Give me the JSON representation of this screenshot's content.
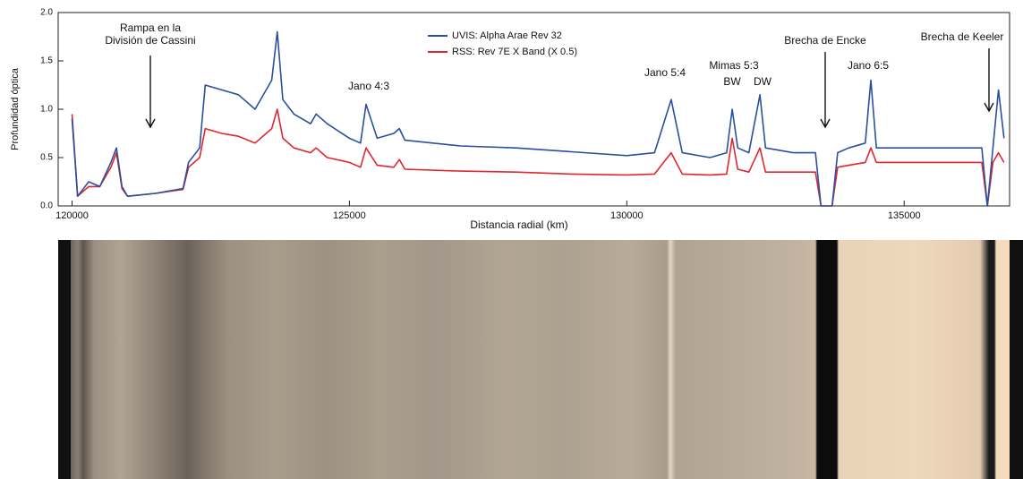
{
  "chart_data": {
    "type": "line",
    "ylabel": "Profundidad óptica",
    "xlabel": "Distancia radial (km)",
    "x": [
      120000,
      120100,
      120300,
      120500,
      120700,
      120800,
      120900,
      121000,
      121500,
      122000,
      122100,
      122300,
      122400,
      122700,
      123000,
      123300,
      123600,
      123700,
      123800,
      124000,
      124300,
      124400,
      124600,
      125000,
      125200,
      125300,
      125500,
      125800,
      125900,
      126000,
      127000,
      128000,
      129000,
      130000,
      130500,
      130800,
      131000,
      131500,
      131800,
      131900,
      132000,
      132200,
      132400,
      132500,
      133000,
      133400,
      133500,
      133700,
      133800,
      134000,
      134300,
      134400,
      134500,
      135000,
      135500,
      136000,
      136400,
      136500,
      136600,
      136700,
      136800
    ],
    "series": [
      {
        "name": "UVIS: Alpha Arae Rev 32",
        "color": "#2a4fa0",
        "values": [
          0.9,
          0.1,
          0.25,
          0.2,
          0.45,
          0.6,
          0.2,
          0.1,
          0.13,
          0.18,
          0.45,
          0.6,
          1.25,
          1.2,
          1.15,
          1.0,
          1.3,
          1.8,
          1.1,
          0.95,
          0.85,
          0.95,
          0.85,
          0.7,
          0.65,
          1.05,
          0.7,
          0.75,
          0.8,
          0.68,
          0.62,
          0.6,
          0.56,
          0.52,
          0.55,
          1.1,
          0.55,
          0.5,
          0.55,
          1.0,
          0.6,
          0.55,
          1.15,
          0.6,
          0.55,
          0.55,
          0,
          0,
          0.55,
          0.6,
          0.65,
          1.3,
          0.6,
          0.6,
          0.6,
          0.6,
          0.6,
          0,
          0.6,
          1.2,
          0.7
        ]
      },
      {
        "name": "RSS: Rev 7E X Band (X 0.5)",
        "color": "#e0262e",
        "values": [
          0.95,
          0.1,
          0.2,
          0.2,
          0.4,
          0.55,
          0.18,
          0.1,
          0.13,
          0.17,
          0.4,
          0.5,
          0.8,
          0.75,
          0.72,
          0.65,
          0.8,
          1.0,
          0.7,
          0.6,
          0.55,
          0.6,
          0.5,
          0.45,
          0.4,
          0.6,
          0.42,
          0.4,
          0.48,
          0.38,
          0.36,
          0.35,
          0.33,
          0.32,
          0.33,
          0.55,
          0.33,
          0.32,
          0.33,
          0.7,
          0.38,
          0.35,
          0.6,
          0.35,
          0.35,
          0.35,
          0,
          0,
          0.4,
          0.42,
          0.45,
          0.6,
          0.45,
          0.45,
          0.45,
          0.45,
          0.45,
          0,
          0.45,
          0.55,
          0.45
        ]
      }
    ],
    "xlim": [
      119750,
      136900
    ],
    "xticks": [
      120000,
      125000,
      130000,
      135000
    ],
    "ylim": [
      0,
      2
    ],
    "yticks": [
      {
        "value": 0,
        "label": "0.0"
      },
      {
        "value": 0.5,
        "label": "0.5"
      },
      {
        "value": 1,
        "label": "1.0"
      },
      {
        "value": 1.5,
        "label": "1.5"
      },
      {
        "value": 2,
        "label": "2.0"
      }
    ],
    "annotations": [
      "Rampa en la",
      "División de Cassini",
      "Jano 4:3",
      "Jano 5:4",
      "Mimas 5:3",
      "BW",
      "DW",
      "Brecha de Encke",
      "Jano 6:5",
      "Brecha de Keeler"
    ]
  }
}
